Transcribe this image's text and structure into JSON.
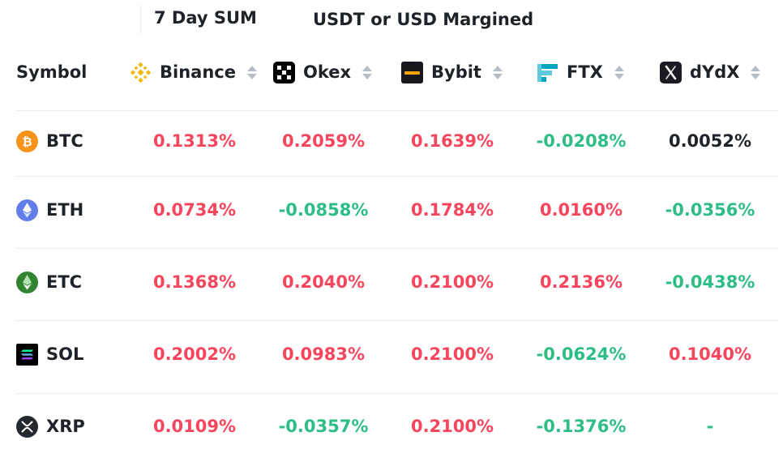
{
  "tabs": {
    "period": "7 Day SUM",
    "margin": "USDT or USD Margined"
  },
  "header": {
    "symbol": "Symbol",
    "exchanges": [
      {
        "name": "Binance",
        "icon": "binance-icon"
      },
      {
        "name": "Okex",
        "icon": "okex-icon"
      },
      {
        "name": "Bybit",
        "icon": "bybit-icon"
      },
      {
        "name": "FTX",
        "icon": "ftx-icon"
      },
      {
        "name": "dYdX",
        "icon": "dydx-icon"
      }
    ]
  },
  "rows": [
    {
      "symbol": "BTC",
      "icon": "btc-icon",
      "values": [
        "0.1313%",
        "0.2059%",
        "0.1639%",
        "-0.0208%",
        "0.0052%"
      ]
    },
    {
      "symbol": "ETH",
      "icon": "eth-icon",
      "values": [
        "0.0734%",
        "-0.0858%",
        "0.1784%",
        "0.0160%",
        "-0.0356%"
      ]
    },
    {
      "symbol": "ETC",
      "icon": "etc-icon",
      "values": [
        "0.1368%",
        "0.2040%",
        "0.2100%",
        "0.2136%",
        "-0.0438%"
      ]
    },
    {
      "symbol": "SOL",
      "icon": "sol-icon",
      "values": [
        "0.2002%",
        "0.0983%",
        "0.2100%",
        "-0.0624%",
        "0.1040%"
      ]
    },
    {
      "symbol": "XRP",
      "icon": "xrp-icon",
      "values": [
        "0.0109%",
        "-0.0357%",
        "0.2100%",
        "-0.1376%",
        "-"
      ]
    }
  ],
  "colors": {
    "positive": "#f6465d",
    "negative": "#2ebd85",
    "neutral": "#1e2329",
    "text": "#1e2329"
  }
}
